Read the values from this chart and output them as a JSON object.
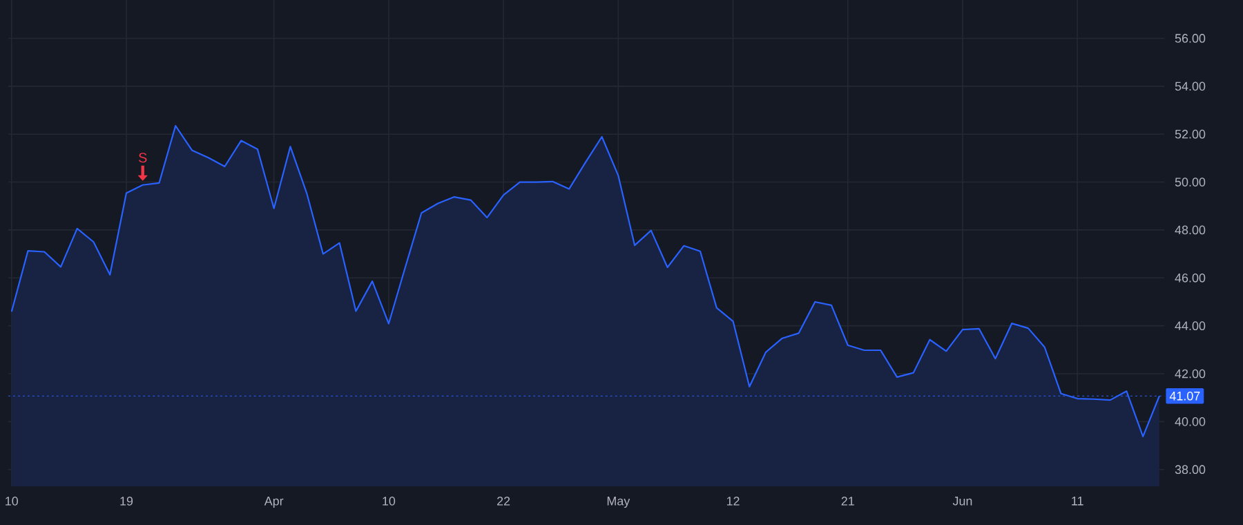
{
  "chart_data": {
    "type": "area",
    "color": "#2962ff",
    "categories": [
      "10",
      null,
      null,
      null,
      null,
      null,
      null,
      "19",
      null,
      null,
      null,
      null,
      null,
      null,
      null,
      null,
      "Apr",
      null,
      null,
      null,
      null,
      null,
      null,
      "10",
      null,
      null,
      null,
      null,
      null,
      null,
      "22",
      null,
      null,
      null,
      null,
      null,
      null,
      "May",
      null,
      null,
      null,
      null,
      null,
      null,
      "12",
      null,
      null,
      null,
      null,
      null,
      null,
      "21",
      null,
      null,
      null,
      null,
      null,
      null,
      "Jun",
      null,
      null,
      null,
      null,
      null,
      null,
      "11",
      null,
      null,
      null,
      null,
      null
    ],
    "values": [
      44.59,
      47.13,
      47.09,
      46.46,
      48.06,
      47.5,
      46.13,
      49.54,
      49.88,
      49.96,
      52.35,
      51.33,
      51.02,
      50.65,
      51.73,
      51.37,
      48.9,
      51.48,
      49.54,
      47.0,
      47.46,
      44.61,
      45.86,
      44.09,
      46.42,
      48.71,
      49.11,
      49.38,
      49.25,
      48.52,
      49.46,
      50.0,
      50.0,
      50.02,
      49.71,
      50.82,
      51.89,
      50.27,
      47.36,
      47.98,
      46.44,
      47.34,
      47.11,
      44.75,
      44.19,
      41.46,
      42.9,
      43.48,
      43.69,
      45.0,
      44.86,
      43.19,
      42.98,
      42.98,
      41.86,
      42.04,
      43.42,
      42.94,
      43.84,
      43.88,
      42.63,
      44.1,
      43.9,
      43.11,
      41.17,
      40.96,
      40.94,
      40.9,
      41.27,
      39.38,
      41.07
    ],
    "ylim": [
      37.3,
      57.6
    ],
    "yticks": [
      {
        "value": 38,
        "label": "38.00"
      },
      {
        "value": 40,
        "label": "40.00"
      },
      {
        "value": 42,
        "label": "42.00"
      },
      {
        "value": 44,
        "label": "44.00"
      },
      {
        "value": 46,
        "label": "46.00"
      },
      {
        "value": 48,
        "label": "48.00"
      },
      {
        "value": 50,
        "label": "50.00"
      },
      {
        "value": 52,
        "label": "52.00"
      },
      {
        "value": 54,
        "label": "54.00"
      },
      {
        "value": 56,
        "label": "56.00"
      }
    ],
    "grid": true,
    "ref_lines": [
      {
        "axis": "y",
        "value": 41.07,
        "label": "41.07",
        "color": "#2962ff",
        "line_style": "dotted"
      }
    ],
    "annotations": [
      {
        "text": "S",
        "y": 49.88
      }
    ]
  }
}
